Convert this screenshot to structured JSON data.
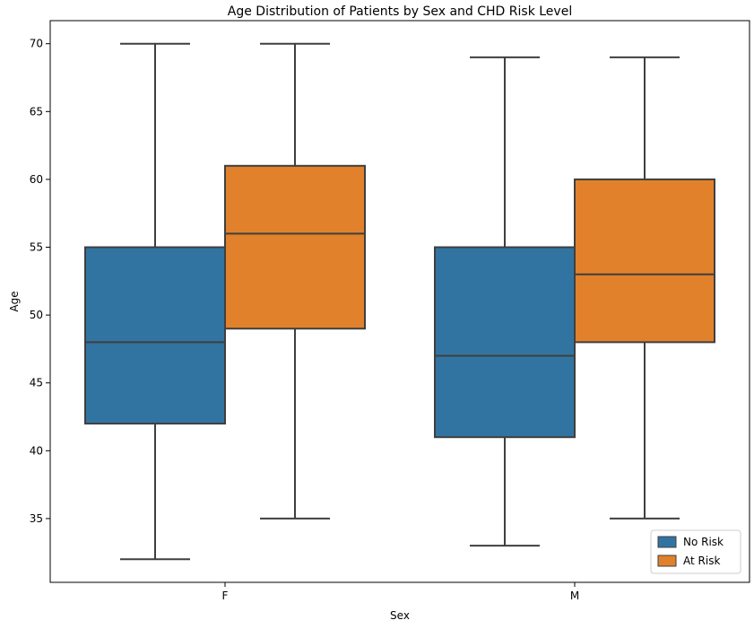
{
  "chart_data": {
    "type": "box",
    "title": "Age Distribution of Patients by Sex and CHD Risk Level",
    "xlabel": "Sex",
    "ylabel": "Age",
    "categories": [
      "F",
      "M"
    ],
    "ylim": [
      30.3,
      71.7
    ],
    "yticks": [
      35,
      40,
      45,
      50,
      55,
      60,
      65,
      70
    ],
    "grid": false,
    "legend_position": "bottom-right",
    "series": [
      {
        "name": "No Risk",
        "color": "#3274a1",
        "boxes": [
          {
            "category": "F",
            "min": 32,
            "q1": 42,
            "median": 48,
            "q3": 55,
            "max": 70
          },
          {
            "category": "M",
            "min": 33,
            "q1": 41,
            "median": 47,
            "q3": 55,
            "max": 69
          }
        ]
      },
      {
        "name": "At Risk",
        "color": "#e1812c",
        "boxes": [
          {
            "category": "F",
            "min": 35,
            "q1": 49,
            "median": 56,
            "q3": 61,
            "max": 70
          },
          {
            "category": "M",
            "min": 35,
            "q1": 48,
            "median": 53,
            "q3": 60,
            "max": 69
          }
        ]
      }
    ]
  }
}
